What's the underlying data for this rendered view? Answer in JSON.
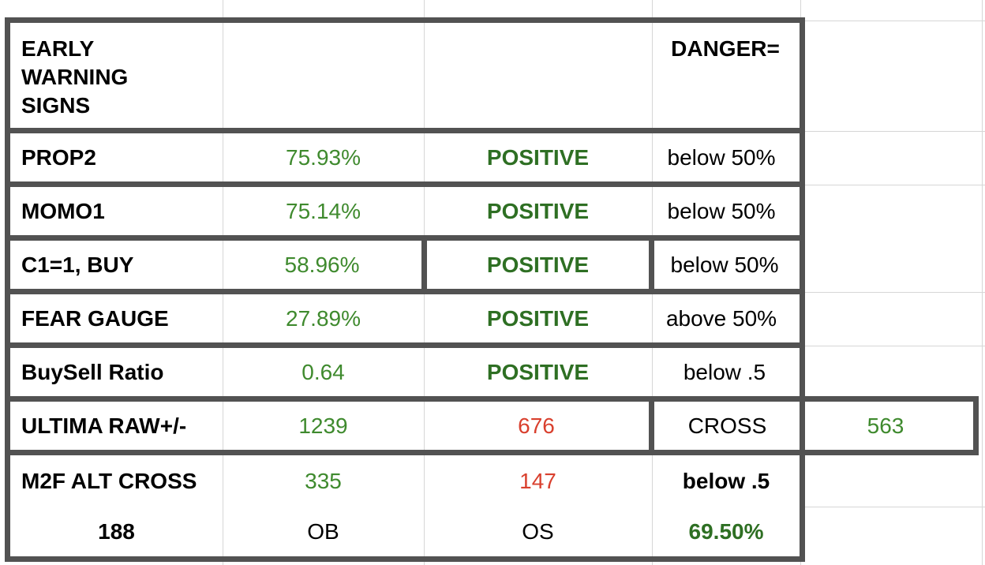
{
  "header": {
    "title_lines": [
      "EARLY",
      "WARNING",
      "SIGNS"
    ],
    "danger_label": "DANGER="
  },
  "rows": [
    {
      "label": "PROP2",
      "value": "75.93%",
      "status": "POSITIVE",
      "threshold": "below 50%"
    },
    {
      "label": "MOMO1",
      "value": "75.14%",
      "status": "POSITIVE",
      "threshold": "below 50%"
    },
    {
      "label": "C1=1, BUY",
      "value": "58.96%",
      "status": "POSITIVE",
      "threshold": "below 50%"
    },
    {
      "label": "FEAR GAUGE",
      "value": "27.89%",
      "status": "POSITIVE",
      "threshold": "above 50%"
    },
    {
      "label": "BuySell Ratio",
      "value": "0.64",
      "status": "POSITIVE",
      "threshold": "below .5"
    }
  ],
  "ultima": {
    "label": "ULTIMA RAW+/-",
    "value_a": "1239",
    "value_b": "676",
    "cross_label": "CROSS",
    "cross_value": "563"
  },
  "m2f": {
    "label": "M2F ALT CROSS",
    "ob": "335",
    "os": "147",
    "threshold": "below .5",
    "count": "188",
    "ob_label": "OB",
    "os_label": "OS",
    "pct": "69.50%"
  },
  "colors": {
    "border": "#525252",
    "grid": "#d6d6d6",
    "green": "#3f8a2e",
    "dark_green": "#2e6f23",
    "red": "#d9402e"
  }
}
